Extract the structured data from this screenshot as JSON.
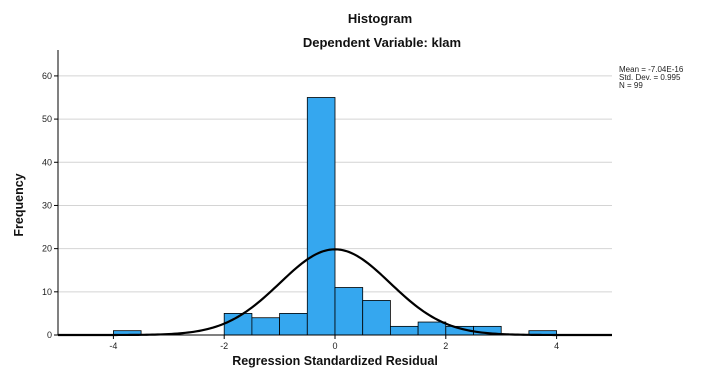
{
  "chart_data": {
    "type": "bar",
    "title": "Histogram",
    "subtitle": "Dependent Variable: klam",
    "xlabel": "Regression Standardized Residual",
    "ylabel": "Frequency",
    "xlim": [
      -5,
      5
    ],
    "ylim": [
      0,
      66
    ],
    "x_ticks": [
      -4,
      -2,
      0,
      2,
      4
    ],
    "y_ticks": [
      0,
      10,
      20,
      30,
      40,
      50,
      60
    ],
    "grid": "horizontal",
    "bin_width": 0.5,
    "bars": [
      {
        "x_start": -4.0,
        "count": 1
      },
      {
        "x_start": -2.0,
        "count": 5
      },
      {
        "x_start": -1.5,
        "count": 4
      },
      {
        "x_start": -1.0,
        "count": 5
      },
      {
        "x_start": -0.5,
        "count": 55
      },
      {
        "x_start": 0.0,
        "count": 11
      },
      {
        "x_start": 0.5,
        "count": 8
      },
      {
        "x_start": 1.0,
        "count": 2
      },
      {
        "x_start": 1.5,
        "count": 3
      },
      {
        "x_start": 2.0,
        "count": 2
      },
      {
        "x_start": 2.5,
        "count": 2
      },
      {
        "x_start": 3.5,
        "count": 1
      }
    ],
    "normal_curve": {
      "mean": -7.04e-16,
      "sd": 0.995,
      "n": 99
    },
    "stats_legend": [
      "Mean = -7.04E-16",
      "Std. Dev. = 0.995",
      "N = 99"
    ],
    "legend_position": "top-right",
    "colors": {
      "bar_fill": "#35a7ef",
      "bar_edge": "#000000",
      "curve": "#000000",
      "grid": "#d4d4d4"
    }
  }
}
